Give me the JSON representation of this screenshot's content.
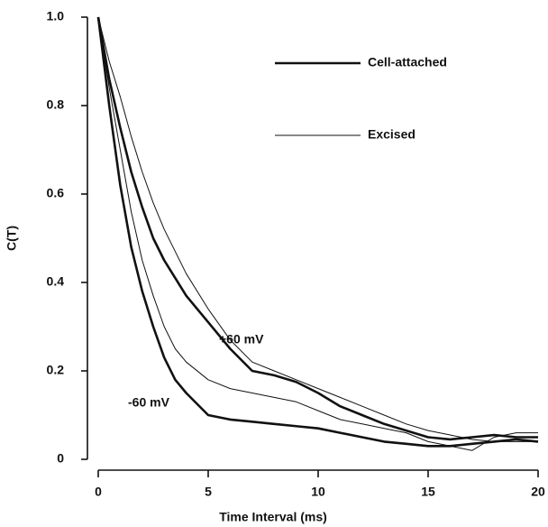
{
  "chart_data": {
    "type": "line",
    "xlabel": "Time Interval (ms)",
    "ylabel": "C(T)",
    "x": [
      0,
      0.5,
      1,
      1.5,
      2,
      2.5,
      3,
      3.5,
      4,
      5,
      6,
      7,
      8,
      9,
      10,
      11,
      12,
      13,
      14,
      15,
      16,
      17,
      18,
      19,
      20
    ],
    "series": [
      {
        "name": "Cell-attached",
        "color": "#111111",
        "line_width": 2.6,
        "values": [
          1.0,
          0.86,
          0.75,
          0.65,
          0.57,
          0.5,
          0.45,
          0.41,
          0.37,
          0.31,
          0.25,
          0.2,
          0.19,
          0.175,
          0.15,
          0.12,
          0.1,
          0.08,
          0.065,
          0.05,
          0.045,
          0.05,
          0.055,
          0.05,
          0.05
        ]
      },
      {
        "name": "Excised",
        "color": "#111111",
        "line_width": 1.0,
        "values": [
          1.0,
          0.9,
          0.82,
          0.73,
          0.65,
          0.58,
          0.52,
          0.47,
          0.42,
          0.34,
          0.27,
          0.22,
          0.2,
          0.18,
          0.16,
          0.14,
          0.12,
          0.1,
          0.08,
          0.065,
          0.055,
          0.045,
          0.04,
          0.04,
          0.04
        ]
      },
      {
        "name": "Cell-attached",
        "color": "#111111",
        "line_width": 2.6,
        "values": [
          1.0,
          0.8,
          0.62,
          0.48,
          0.38,
          0.3,
          0.23,
          0.18,
          0.15,
          0.1,
          0.09,
          0.085,
          0.08,
          0.075,
          0.07,
          0.06,
          0.05,
          0.04,
          0.035,
          0.03,
          0.03,
          0.035,
          0.04,
          0.045,
          0.04
        ]
      },
      {
        "name": "Excised",
        "color": "#111111",
        "line_width": 1.0,
        "values": [
          1.0,
          0.84,
          0.7,
          0.56,
          0.45,
          0.37,
          0.3,
          0.25,
          0.22,
          0.18,
          0.16,
          0.15,
          0.14,
          0.13,
          0.11,
          0.09,
          0.08,
          0.07,
          0.06,
          0.04,
          0.03,
          0.02,
          0.05,
          0.06,
          0.06
        ]
      }
    ],
    "annotations": [
      "+60 mV",
      "-60 mV"
    ],
    "xlim": [
      0,
      20
    ],
    "xticks": [
      0,
      5,
      10,
      15,
      20
    ],
    "ylim": [
      0,
      1
    ],
    "yticks": [
      0,
      0.2,
      0.4,
      0.6,
      0.8,
      {
        "value": 1,
        "label": "1.0"
      }
    ],
    "grid": false,
    "legend": "upper right"
  }
}
